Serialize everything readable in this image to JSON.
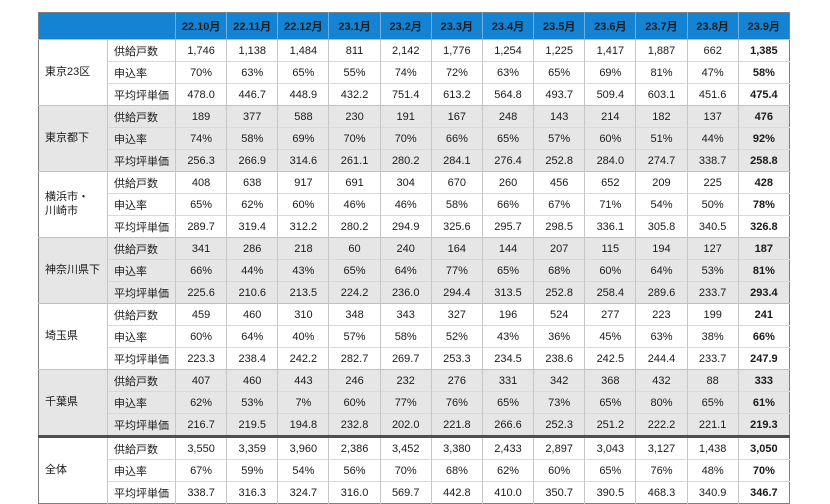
{
  "chart_data": {
    "type": "table",
    "title": "",
    "columns": [
      "22.10月",
      "22.11月",
      "22.12月",
      "23.1月",
      "23.2月",
      "23.3月",
      "23.4月",
      "23.5月",
      "23.6月",
      "23.7月",
      "23.8月",
      "23.9月"
    ],
    "row_metrics": [
      "供給戸数",
      "申込率",
      "平均坪単価"
    ],
    "groups": [
      {
        "name": "東京23区",
        "name_display": "東京23区",
        "shaded": false,
        "supply": [
          "1,746",
          "1,138",
          "1,484",
          "811",
          "2,142",
          "1,776",
          "1,254",
          "1,225",
          "1,417",
          "1,887",
          "662",
          "1,385"
        ],
        "rate": [
          "70%",
          "63%",
          "65%",
          "55%",
          "74%",
          "72%",
          "63%",
          "65%",
          "69%",
          "81%",
          "47%",
          "58%"
        ],
        "price": [
          "478.0",
          "446.7",
          "448.9",
          "432.2",
          "751.4",
          "613.2",
          "564.8",
          "493.7",
          "509.4",
          "603.1",
          "451.6",
          "475.4"
        ]
      },
      {
        "name": "東京都下",
        "name_display": "東京都下",
        "shaded": true,
        "supply": [
          "189",
          "377",
          "588",
          "230",
          "191",
          "167",
          "248",
          "143",
          "214",
          "182",
          "137",
          "476"
        ],
        "rate": [
          "74%",
          "58%",
          "69%",
          "70%",
          "70%",
          "66%",
          "65%",
          "57%",
          "60%",
          "51%",
          "44%",
          "92%"
        ],
        "price": [
          "256.3",
          "266.9",
          "314.6",
          "261.1",
          "280.2",
          "284.1",
          "276.4",
          "252.8",
          "284.0",
          "274.7",
          "338.7",
          "258.8"
        ]
      },
      {
        "name": "横浜市・川崎市",
        "name_display": "横浜市・\n川崎市",
        "shaded": false,
        "supply": [
          "408",
          "638",
          "917",
          "691",
          "304",
          "670",
          "260",
          "456",
          "652",
          "209",
          "225",
          "428"
        ],
        "rate": [
          "65%",
          "62%",
          "60%",
          "46%",
          "46%",
          "58%",
          "66%",
          "67%",
          "71%",
          "54%",
          "50%",
          "78%"
        ],
        "price": [
          "289.7",
          "319.4",
          "312.2",
          "280.2",
          "294.9",
          "325.6",
          "295.7",
          "298.5",
          "336.1",
          "305.8",
          "340.5",
          "326.8"
        ]
      },
      {
        "name": "神奈川県下",
        "name_display": "神奈川県下",
        "shaded": true,
        "supply": [
          "341",
          "286",
          "218",
          "60",
          "240",
          "164",
          "144",
          "207",
          "115",
          "194",
          "127",
          "187"
        ],
        "rate": [
          "66%",
          "44%",
          "43%",
          "65%",
          "64%",
          "77%",
          "65%",
          "68%",
          "60%",
          "64%",
          "53%",
          "81%"
        ],
        "price": [
          "225.6",
          "210.6",
          "213.5",
          "224.2",
          "236.0",
          "294.4",
          "313.5",
          "252.8",
          "258.4",
          "289.6",
          "233.7",
          "293.4"
        ]
      },
      {
        "name": "埼玉県",
        "name_display": "埼玉県",
        "shaded": false,
        "supply": [
          "459",
          "460",
          "310",
          "348",
          "343",
          "327",
          "196",
          "524",
          "277",
          "223",
          "199",
          "241"
        ],
        "rate": [
          "60%",
          "64%",
          "40%",
          "57%",
          "58%",
          "52%",
          "43%",
          "36%",
          "45%",
          "63%",
          "38%",
          "66%"
        ],
        "price": [
          "223.3",
          "238.4",
          "242.2",
          "282.7",
          "269.7",
          "253.3",
          "234.5",
          "238.6",
          "242.5",
          "244.4",
          "233.7",
          "247.9"
        ]
      },
      {
        "name": "千葉県",
        "name_display": "千葉県",
        "shaded": true,
        "supply": [
          "407",
          "460",
          "443",
          "246",
          "232",
          "276",
          "331",
          "342",
          "368",
          "432",
          "88",
          "333"
        ],
        "rate": [
          "62%",
          "53%",
          "7%",
          "60%",
          "77%",
          "76%",
          "65%",
          "73%",
          "65%",
          "80%",
          "65%",
          "61%"
        ],
        "price": [
          "216.7",
          "219.5",
          "194.8",
          "232.8",
          "202.0",
          "221.8",
          "266.6",
          "252.3",
          "251.2",
          "222.2",
          "221.1",
          "219.3"
        ]
      },
      {
        "name": "全体",
        "name_display": "全体",
        "shaded": false,
        "total": true,
        "supply": [
          "3,550",
          "3,359",
          "3,960",
          "2,386",
          "3,452",
          "3,380",
          "2,433",
          "2,897",
          "3,043",
          "3,127",
          "1,438",
          "3,050"
        ],
        "rate": [
          "67%",
          "59%",
          "54%",
          "56%",
          "70%",
          "68%",
          "62%",
          "60%",
          "65%",
          "76%",
          "48%",
          "70%"
        ],
        "price": [
          "338.7",
          "316.3",
          "324.7",
          "316.0",
          "569.7",
          "442.8",
          "410.0",
          "350.7",
          "390.5",
          "468.3",
          "340.9",
          "346.7"
        ]
      }
    ],
    "layout": {
      "legend": "none",
      "grid": "on"
    }
  },
  "colors": {
    "header_bg": "#1583d4",
    "header_text": "#ffffff",
    "shaded_row_bg": "#e6e6e6",
    "grid_line": "#c6c6c6",
    "outer_border": "#7f7f7f",
    "total_separator": "#4f4f4f"
  }
}
